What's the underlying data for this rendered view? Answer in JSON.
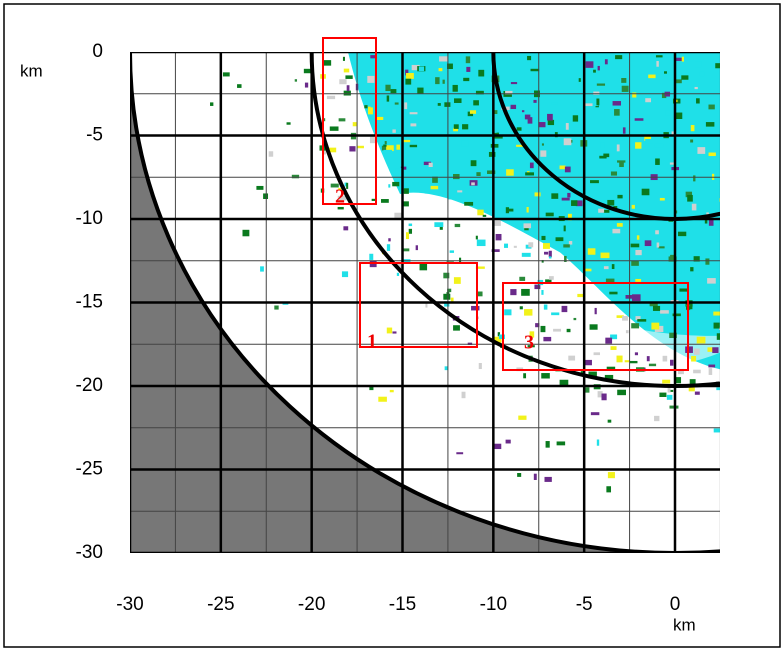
{
  "chart_data": {
    "type": "radar-image",
    "x_label": "km",
    "y_label": "km",
    "xlim": [
      -30,
      2.5
    ],
    "ylim": [
      -30,
      0
    ],
    "xticks": [
      -30,
      -25,
      -20,
      -15,
      -10,
      -5,
      0
    ],
    "yticks": [
      0,
      -5,
      -10,
      -15,
      -20,
      -25,
      -30
    ],
    "range_rings": [
      10,
      20,
      30
    ],
    "annotations": [
      "1",
      "2",
      "3"
    ],
    "grid": true
  }
}
